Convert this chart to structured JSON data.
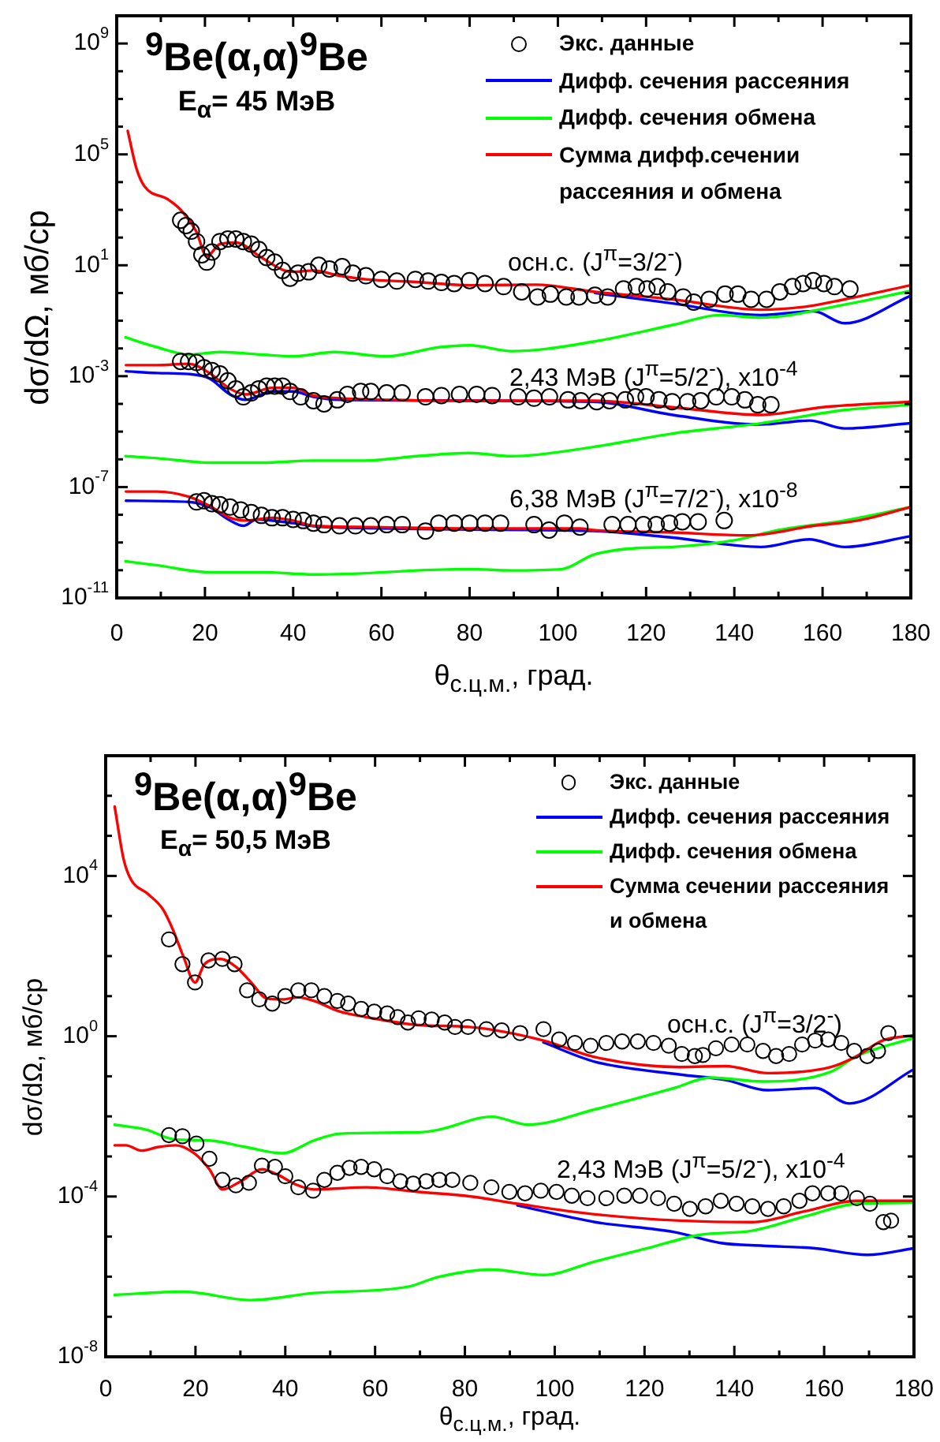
{
  "chart_data": [
    {
      "type": "line",
      "title": "$^{9}$Be(α,α)$^{9}$Be",
      "subtitle": "E$_{α}$= 45 МэВ",
      "xlabel": "θ$_{с.ц.м.}$, град.",
      "ylabel": "dσ/dΩ, мб/ср",
      "log": "y",
      "legend": "top right",
      "marker": "none",
      "xlim": [
        0,
        180
      ],
      "xticks": [
        0,
        {
          "value": 10,
          "label": null
        },
        20,
        {
          "value": 30,
          "label": null
        },
        40,
        {
          "value": 50,
          "label": null
        },
        60,
        {
          "value": 70,
          "label": null
        },
        80,
        {
          "value": 90,
          "label": null
        },
        100,
        {
          "value": 110,
          "label": null
        },
        120,
        {
          "value": 130,
          "label": null
        },
        140,
        {
          "value": 150,
          "label": null
        },
        160,
        {
          "value": 170,
          "label": null
        },
        180
      ],
      "ylim": [
        1e-11,
        10000000000.0
      ],
      "yticks": [
        {
          "value": 1e-11,
          "label": "10$^{-11}$"
        },
        {
          "value": 1e-10,
          "label": null
        },
        {
          "value": 1e-09,
          "label": null
        },
        {
          "value": 1e-08,
          "label": null
        },
        {
          "value": 1e-07,
          "label": "10$^{-7}$"
        },
        {
          "value": 1e-06,
          "label": null
        },
        {
          "value": 1e-05,
          "label": null
        },
        {
          "value": 0.0001,
          "label": null
        },
        {
          "value": 0.001,
          "label": "10$^{-3}$"
        },
        {
          "value": 0.01,
          "label": null
        },
        {
          "value": 0.1,
          "label": null
        },
        {
          "value": 1,
          "label": null
        },
        {
          "value": 10,
          "label": "10$^{1}$"
        },
        {
          "value": 100,
          "label": null
        },
        {
          "value": 1000.0,
          "label": null
        },
        {
          "value": 10000.0,
          "label": null
        },
        {
          "value": 100000.0,
          "label": "10$^{5}$"
        },
        {
          "value": 1000000.0,
          "label": null
        },
        {
          "value": 10000000.0,
          "label": null
        },
        {
          "value": 100000000.0,
          "label": null
        },
        {
          "value": 1000000000.0,
          "label": "10$^{9}$"
        }
      ],
      "annotations": [
        "осн.с. (J$^{π}$=3/2$^{-}$)",
        "2,43 МэВ (J$^{π}$=5/2$^{-}$), x10$^{-4}$",
        "6,38 МэВ (J$^{π}$=7/2$^{-}$), x10$^{-8}$"
      ],
      "series": [
        {
          "name": "Экс. данные",
          "type": "scatter",
          "marker": "circle",
          "color": "#000000",
          "x": [
            14.5,
            15.7,
            16.9,
            18.1,
            19.3,
            20.4,
            21.6,
            23.4,
            25.2,
            27,
            28.7,
            30.5,
            32.2,
            34,
            35.8,
            37.6,
            39.3,
            41.1,
            43.5,
            45.8,
            48.2,
            51.1,
            53.5,
            56.5,
            60,
            63.5,
            67.7,
            70.6,
            73.6,
            76.5,
            80,
            83.5,
            87.7,
            91.8,
            95.4,
            98.3,
            101.9,
            104.8,
            108.4,
            111.3,
            114.9,
            117.8,
            120.2,
            122.5,
            124.9,
            128.4,
            130.8,
            134.3,
            137.9,
            140.8,
            143.8,
            147.3,
            150.3,
            153.2,
            155.6,
            157.9,
            160.3,
            162.7,
            166.2
          ],
          "values": [
            420,
            270,
            170,
            72,
            24,
            13,
            30,
            72,
            89,
            89,
            72,
            58,
            37,
            19,
            13,
            6.5,
            3.4,
            5.2,
            5.8,
            10,
            7.4,
            8.9,
            5.2,
            4.2,
            3.1,
            2.7,
            3.1,
            2.7,
            2.4,
            2.2,
            2.8,
            2.2,
            1.7,
            1.1,
            0.72,
            0.91,
            0.72,
            0.72,
            0.83,
            0.72,
            1.4,
            1.7,
            1.4,
            1.7,
            1.1,
            0.72,
            0.47,
            0.59,
            0.91,
            0.91,
            0.59,
            0.59,
            1.1,
            1.7,
            2.2,
            2.8,
            2.2,
            1.7,
            1.4
          ]
        },
        {
          "name": "Дифф. сечения рассеяния",
          "color": "#0000ff",
          "x": [
            108.4,
            126,
            146,
            158,
            165,
            180
          ],
          "values": [
            1.0,
            0.42,
            0.16,
            0.22,
            0.081,
            0.8
          ]
        },
        {
          "name": "Дифф. сечения обмена",
          "color": "#00ff00",
          "x": [
            2,
            9.2,
            16.3,
            23.4,
            32.8,
            40,
            49.4,
            61,
            73,
            80,
            89.5,
            108.4,
            126,
            136.8,
            146,
            165,
            180
          ],
          "values": [
            0.025,
            0.011,
            0.006,
            0.0074,
            0.006,
            0.0052,
            0.0074,
            0.0052,
            0.011,
            0.013,
            0.008,
            0.018,
            0.07,
            0.16,
            0.13,
            0.38,
            1.2
          ]
        },
        {
          "name": "Сумма дифф.сечении рассеяния и обмена",
          "color": "#ff0000",
          "x": [
            2.5,
            4.5,
            6.3,
            11.6,
            14.5,
            18,
            20.4,
            23.4,
            27,
            32.8,
            38,
            40,
            44.6,
            50.5,
            56.5,
            68,
            80,
            95,
            108.4,
            126,
            146,
            156,
            165,
            180
          ],
          "values": [
            700000.0,
            30000.0,
            7000.0,
            2400.0,
            1000.0,
            170,
            21,
            58,
            66,
            19,
            6.5,
            5.8,
            6.5,
            4.2,
            3.1,
            2.5,
            1.9,
            2,
            1.1,
            0.59,
            0.25,
            0.32,
            0.59,
            1.9
          ]
        },
        {
          "type": "scatter",
          "marker": "circle",
          "color": "#000000",
          "x": [
            14.5,
            16.3,
            18.1,
            19.8,
            21.6,
            23.4,
            25.2,
            27,
            28.7,
            30.5,
            32.2,
            34,
            35.8,
            37.6,
            39.3,
            41.7,
            44.6,
            47,
            50,
            52.3,
            55.3,
            57.6,
            61.2,
            64.7,
            70,
            73.6,
            77.7,
            81.6,
            85.1,
            91,
            94.6,
            98.1,
            102.3,
            105.2,
            108.8,
            111.7,
            115.3,
            117.6,
            120,
            122.9,
            125.9,
            129.4,
            132.4,
            135.9,
            139.4,
            142.4,
            145.3,
            148.3
          ],
          "values": [
            0.0034,
            0.0034,
            0.0031,
            0.002,
            0.0016,
            0.0012,
            0.00068,
            0.00035,
            0.00018,
            0.00025,
            0.00035,
            0.00044,
            0.00044,
            0.00044,
            0.00028,
            0.00018,
            0.00013,
            0.0001,
            0.00014,
            0.00022,
            0.00028,
            0.00028,
            0.00025,
            0.00025,
            0.00018,
            0.0002,
            0.00022,
            0.00022,
            0.0002,
            0.00018,
            0.00016,
            0.00018,
            0.00014,
            0.00013,
            0.00012,
            0.00013,
            0.00014,
            0.00018,
            0.00018,
            0.00014,
            0.00012,
            0.00012,
            0.00013,
            0.00018,
            0.00018,
            0.00014,
            9.3e-05,
            9.3e-05
          ]
        },
        {
          "color": "#0000ff",
          "x": [
            2.1,
            9.2,
            16.3,
            21,
            25.7,
            29.3,
            35.2,
            40,
            44.6,
            50.5,
            108,
            126,
            146,
            157,
            165,
            180
          ],
          "values": [
            0.0015,
            0.0013,
            0.0012,
            0.00083,
            0.00022,
            0.00014,
            0.00028,
            0.00028,
            0.00018,
            0.00014,
            0.00012,
            4e-05,
            1.8e-05,
            2.5e-05,
            1.3e-05,
            2e-05
          ]
        },
        {
          "color": "#00ff00",
          "x": [
            2,
            9.2,
            21,
            32.8,
            44.6,
            56.5,
            68,
            80,
            89.5,
            108,
            126,
            146,
            165,
            180
          ],
          "values": [
            1.3e-06,
            1.1e-06,
            7.6e-07,
            7.6e-07,
            9e-07,
            9e-07,
            1.3e-06,
            1.7e-06,
            1.3e-06,
            2.8e-06,
            8.5e-06,
            2e-05,
            6e-05,
            9.3e-05
          ]
        },
        {
          "color": "#ff0000",
          "x": [
            2.1,
            9.2,
            16.3,
            21,
            25.7,
            29.3,
            35.2,
            40,
            44.6,
            50.5,
            62.4,
            80,
            108,
            126,
            146,
            160,
            180
          ],
          "values": [
            0.0025,
            0.0025,
            0.0028,
            0.0013,
            0.00035,
            0.00022,
            0.00038,
            0.00038,
            0.0002,
            0.00016,
            0.00014,
            0.00013,
            0.00013,
            7.6e-05,
            4e-05,
            7.6e-05,
            0.00012
          ]
        },
        {
          "type": "scatter",
          "marker": "circle",
          "color": "#000000",
          "x": [
            18.1,
            19.8,
            21.6,
            23.4,
            25.7,
            28.1,
            30.5,
            32.8,
            35.2,
            37.6,
            40,
            42.3,
            44.6,
            47,
            50.5,
            54.1,
            57.6,
            61.2,
            64.7,
            70,
            73,
            76.5,
            80,
            83.5,
            87,
            94.6,
            98,
            101.5,
            105,
            112.3,
            115.9,
            119.4,
            122.3,
            125.3,
            128.2,
            131.8,
            137.7
          ],
          "values": [
            2.9e-08,
            3.2e-08,
            2.5e-08,
            2.3e-08,
            1.9e-08,
            1.5e-08,
            1.2e-08,
            9.5e-09,
            7.8e-09,
            7.8e-09,
            6.8e-09,
            6.2e-09,
            5e-09,
            4.4e-09,
            4e-09,
            4e-09,
            4e-09,
            4.4e-09,
            4.4e-09,
            2.6e-09,
            5e-09,
            5e-09,
            5e-09,
            5e-09,
            5e-09,
            4.4e-09,
            2.8e-09,
            5e-09,
            3.6e-09,
            4.4e-09,
            4.4e-09,
            4.4e-09,
            4.4e-09,
            5e-09,
            5.6e-09,
            5.6e-09,
            6.2e-09
          ]
        },
        {
          "color": "#0000ff",
          "x": [
            2.1,
            16.3,
            21,
            25.7,
            28.7,
            31.7,
            40,
            47,
            108,
            126,
            146,
            157,
            165,
            180
          ],
          "values": [
            3.2e-08,
            2.9e-08,
            1.9e-08,
            6.2e-09,
            4e-09,
            6.8e-09,
            5e-09,
            3.6e-09,
            2.6e-09,
            1.5e-09,
            6.9e-10,
            1.3e-09,
            6.9e-10,
            1.7e-09
          ]
        },
        {
          "color": "#00ff00",
          "x": [
            2,
            9.2,
            21,
            32.8,
            44.6,
            56.5,
            68,
            80,
            89.5,
            101,
            108,
            118,
            126,
            140,
            150,
            165,
            180
          ],
          "values": [
            2.1e-10,
            1.5e-10,
            8.5e-11,
            8.5e-11,
            7e-11,
            7.8e-11,
            9.8e-11,
            1.1e-10,
            9.8e-11,
            1.1e-10,
            3.6e-10,
            6.3e-10,
            6.9e-10,
            1.2e-09,
            2.8e-09,
            6.2e-09,
            1.9e-08
          ]
        },
        {
          "color": "#ff0000",
          "x": [
            2.1,
            9.2,
            16.3,
            21,
            25.7,
            29.3,
            35.2,
            40,
            44.6,
            56.5,
            80,
            105,
            108,
            126,
            143,
            158,
            168,
            180
          ],
          "values": [
            6.9e-08,
            6.9e-08,
            4.5e-08,
            2.1e-08,
            7.8e-09,
            6.2e-09,
            7.8e-09,
            6.2e-09,
            4e-09,
            3.6e-09,
            3.2e-09,
            3.2e-09,
            2.8e-09,
            2.3e-09,
            1.8e-09,
            4e-09,
            6.2e-09,
            1.9e-08
          ]
        }
      ]
    },
    {
      "type": "line",
      "title": "$^{9}$Be(α,α)$^{9}$Be",
      "subtitle": "E$_{α}$= 50,5 МэВ",
      "xlabel": "θ$_{с.ц.м.}$, град.",
      "ylabel": "dσ/dΩ, мб/ср",
      "log": "y",
      "legend": "top right",
      "marker": "none",
      "xlim": [
        0,
        180
      ],
      "xticks": [
        0,
        {
          "value": 10,
          "label": null
        },
        20,
        {
          "value": 30,
          "label": null
        },
        40,
        {
          "value": 50,
          "label": null
        },
        60,
        {
          "value": 70,
          "label": null
        },
        80,
        {
          "value": 90,
          "label": null
        },
        100,
        {
          "value": 110,
          "label": null
        },
        120,
        {
          "value": 130,
          "label": null
        },
        140,
        {
          "value": 150,
          "label": null
        },
        160,
        {
          "value": 170,
          "label": null
        },
        180
      ],
      "ylim": [
        1e-08,
        10000000.0
      ],
      "yticks": [
        {
          "value": 1e-08,
          "label": "10$^{-8}$"
        },
        {
          "value": 1e-07,
          "label": null
        },
        {
          "value": 1e-06,
          "label": null
        },
        {
          "value": 1e-05,
          "label": null
        },
        {
          "value": 0.0001,
          "label": "10$^{-4}$"
        },
        {
          "value": 0.001,
          "label": null
        },
        {
          "value": 0.01,
          "label": null
        },
        {
          "value": 0.1,
          "label": null
        },
        {
          "value": 1,
          "label": "10$^{0}$"
        },
        {
          "value": 10,
          "label": null
        },
        {
          "value": 100,
          "label": null
        },
        {
          "value": 1000.0,
          "label": null
        },
        {
          "value": 10000.0,
          "label": "10$^{4}$"
        },
        {
          "value": 100000.0,
          "label": null
        },
        {
          "value": 1000000.0,
          "label": null
        }
      ],
      "annotations": [
        "осн.с. (J$^{π}$=3/2$^{-}$)",
        "2,43 МэВ (J$^{π}$=5/2$^{-}$), x10$^{-4}$"
      ],
      "series": [
        {
          "name": "Экс. данные",
          "type": "scatter",
          "marker": "circle",
          "color": "#000000",
          "x": [
            14.1,
            17.1,
            19.9,
            22.9,
            26,
            28.7,
            31.5,
            34.2,
            37.1,
            40,
            42.9,
            45.8,
            48.7,
            51.6,
            54,
            56.9,
            59.8,
            62.7,
            65,
            67.3,
            69.7,
            72.6,
            75.5,
            77.8,
            80.7,
            84.8,
            88.2,
            92.3,
            97.5,
            101,
            104.5,
            108,
            111.5,
            115,
            118.5,
            122,
            125.4,
            128.3,
            131.2,
            133,
            135.9,
            139.4,
            142.9,
            146.4,
            149.3,
            152.2,
            155.1,
            158,
            160.9,
            163.8,
            166.7,
            169.6,
            172,
            174.3
          ],
          "values": [
            260,
            63,
            22,
            78,
            85,
            63,
            14,
            8.3,
            6.5,
            10,
            14,
            14,
            10,
            7.6,
            6.5,
            4.8,
            4.1,
            3.7,
            3,
            2.2,
            2.8,
            2.6,
            2.2,
            1.7,
            1.7,
            1.5,
            1.4,
            1.2,
            1.5,
            0.83,
            0.68,
            0.58,
            0.68,
            0.74,
            0.74,
            0.68,
            0.58,
            0.36,
            0.32,
            0.34,
            0.5,
            0.62,
            0.62,
            0.43,
            0.32,
            0.36,
            0.62,
            0.78,
            0.83,
            0.68,
            0.43,
            0.32,
            0.43,
            1.2
          ]
        },
        {
          "name": "Дифф. сечения рассеяния",
          "color": "#0000ff",
          "x": [
            97.5,
            109,
            128,
            138,
            147.5,
            158,
            165.6,
            180
          ],
          "values": [
            0.7,
            0.23,
            0.11,
            0.081,
            0.045,
            0.051,
            0.021,
            0.15
          ]
        },
        {
          "name": "Дифф. сечения обмена",
          "color": "#00ff00",
          "x": [
            2,
            9.2,
            15,
            23,
            31.3,
            39.4,
            46.4,
            52.2,
            69.7,
            74,
            86,
            94,
            109,
            126.6,
            134.7,
            146.4,
            161.5,
            167.3,
            180
          ],
          "values": [
            0.0062,
            0.0046,
            0.0027,
            0.0025,
            0.0017,
            0.0012,
            0.0025,
            0.0037,
            0.004,
            0.0046,
            0.0098,
            0.0062,
            0.015,
            0.051,
            0.093,
            0.074,
            0.13,
            0.32,
            0.91
          ]
        },
        {
          "name": "Сумма сечении рассеяния и обмена",
          "color": "#ff0000",
          "x": [
            2,
            4,
            5.7,
            9.2,
            12.7,
            15,
            17.3,
            19.9,
            22,
            25.5,
            29,
            32.4,
            35.9,
            39.4,
            42.9,
            46.4,
            52.2,
            58,
            69.7,
            81,
            97.5,
            109,
            128,
            138,
            147.5,
            161.5,
            167.3,
            173,
            180
          ],
          "values": [
            540000.0,
            26000.0,
            7900.0,
            3700.0,
            1500.0,
            450,
            98,
            22,
            63,
            85,
            54,
            22,
            8.7,
            8.3,
            9.3,
            7.6,
            4.1,
            3,
            1.9,
            1.7,
            0.78,
            0.3,
            0.17,
            0.18,
            0.12,
            0.17,
            0.32,
            0.78,
            1.05
          ]
        },
        {
          "type": "scatter",
          "marker": "circle",
          "color": "#000000",
          "x": [
            14.1,
            17.1,
            20.2,
            23.1,
            26,
            29,
            31.9,
            34.8,
            37.7,
            40,
            42.9,
            46.2,
            48.7,
            51.6,
            54.3,
            56.9,
            59.8,
            62.7,
            65.6,
            68.5,
            71.4,
            74.3,
            77.2,
            81.2,
            85.9,
            89.9,
            93.4,
            96.9,
            100.4,
            103.8,
            107.3,
            111.5,
            115.5,
            119,
            123,
            126.6,
            130.1,
            133.6,
            137,
            140.5,
            144,
            147.5,
            151,
            154.5,
            157.4,
            160.9,
            163.8,
            167.3,
            170.2,
            173.2,
            174.9
          ],
          "values": [
            0.0034,
            0.0032,
            0.0021,
            0.00087,
            0.00026,
            0.00019,
            0.00022,
            0.00059,
            0.00055,
            0.00032,
            0.00017,
            0.00014,
            0.00026,
            0.00039,
            0.00052,
            0.00055,
            0.00048,
            0.00032,
            0.00024,
            0.00021,
            0.00024,
            0.00026,
            0.00026,
            0.00022,
            0.00017,
            0.00013,
            0.00012,
            0.00014,
            0.00013,
            0.000105,
            9.1e-05,
            9.1e-05,
            0.000105,
            0.000105,
            9.1e-05,
            6.6e-05,
            4.9e-05,
            5.7e-05,
            7.8e-05,
            6.6e-05,
            5.7e-05,
            4.9e-05,
            5.7e-05,
            7.8e-05,
            0.00012,
            0.00012,
            0.00012,
            9.1e-05,
            6.6e-05,
            2.3e-05,
            2.5e-05
          ]
        },
        {
          "color": "#0000ff",
          "x": [
            91.7,
            109,
            126.6,
            137,
            146.4,
            158,
            169.6,
            180
          ],
          "values": [
            6e-05,
            2.3e-05,
            1.3e-05,
            6.9e-06,
            5.9e-06,
            5.1e-06,
            3.5e-06,
            5.1e-06
          ]
        },
        {
          "color": "#00ff00",
          "x": [
            2,
            17.3,
            32.4,
            46.4,
            67.3,
            74,
            86,
            97.5,
            109,
            120.6,
            132.2,
            144,
            155.8,
            167.3,
            180
          ],
          "values": [
            3.5e-07,
            4.2e-07,
            2.6e-07,
            3.9e-07,
            5.6e-07,
            9.8e-07,
            1.5e-06,
            1.1e-06,
            2.4e-06,
            5.1e-06,
            1.1e-05,
            1.4e-05,
            3.2e-05,
            6.6e-05,
            7e-05
          ]
        },
        {
          "color": "#ff0000",
          "x": [
            2,
            4.5,
            8,
            11.5,
            15.6,
            19.7,
            23.1,
            26,
            30.1,
            34.8,
            38.3,
            42.3,
            46.4,
            58,
            69.7,
            81.3,
            91.7,
            109,
            128,
            144,
            155.8,
            167.3,
            180
          ],
          "values": [
            0.0019,
            0.0019,
            0.0014,
            0.0017,
            0.0019,
            0.0012,
            0.00048,
            0.00015,
            0.00024,
            0.00048,
            0.00035,
            0.0002,
            0.00015,
            0.00017,
            0.00013,
            0.0001,
            6.6e-05,
            3.6e-05,
            2.5e-05,
            2.3e-05,
            4.3e-05,
            7.8e-05,
            7.8e-05
          ]
        }
      ]
    }
  ]
}
